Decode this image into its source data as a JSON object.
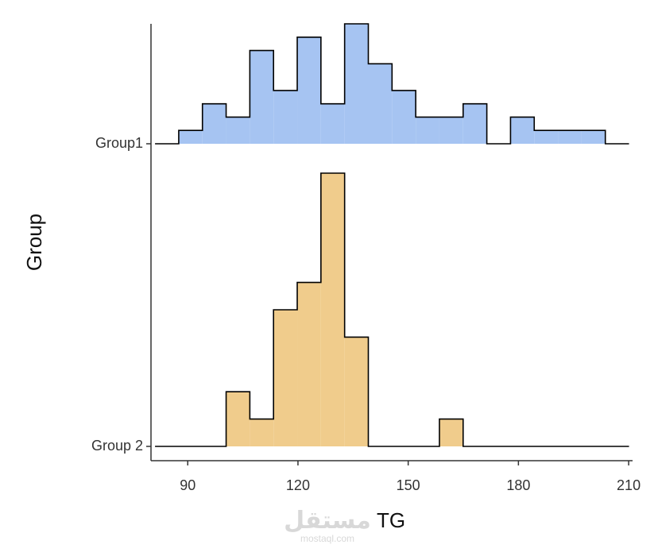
{
  "chart_data": {
    "type": "ridgeline-histogram",
    "x_label": "TG",
    "y_label": "Group",
    "xlim": [
      80,
      210.2
    ],
    "xticks": [
      90,
      120,
      150,
      180,
      210
    ],
    "categories": [
      "Group 2",
      "Group1"
    ],
    "bins": [
      81.1,
      87.55,
      94.0,
      100.45,
      106.9,
      113.35,
      119.8,
      126.25,
      132.7,
      139.15,
      145.6,
      152.05,
      158.5,
      164.95,
      171.4,
      177.85,
      184.3,
      190.75,
      197.2,
      203.65,
      210.1
    ],
    "series": [
      {
        "name": "Group 2",
        "color": "#f0cc8c",
        "values": [
          0,
          0,
          0,
          2,
          1,
          5,
          6,
          10,
          4,
          0,
          0,
          0,
          1,
          0,
          0,
          0,
          0,
          0,
          0,
          0
        ]
      },
      {
        "name": "Group1",
        "color": "#a6c4f2",
        "values": [
          0,
          1,
          3,
          2,
          7,
          4,
          8,
          3,
          9,
          6,
          4,
          2,
          2,
          3,
          0,
          2,
          1,
          1,
          1,
          0
        ]
      }
    ],
    "watermark": "مستقل",
    "watermark_sub": "mostaql.com"
  }
}
